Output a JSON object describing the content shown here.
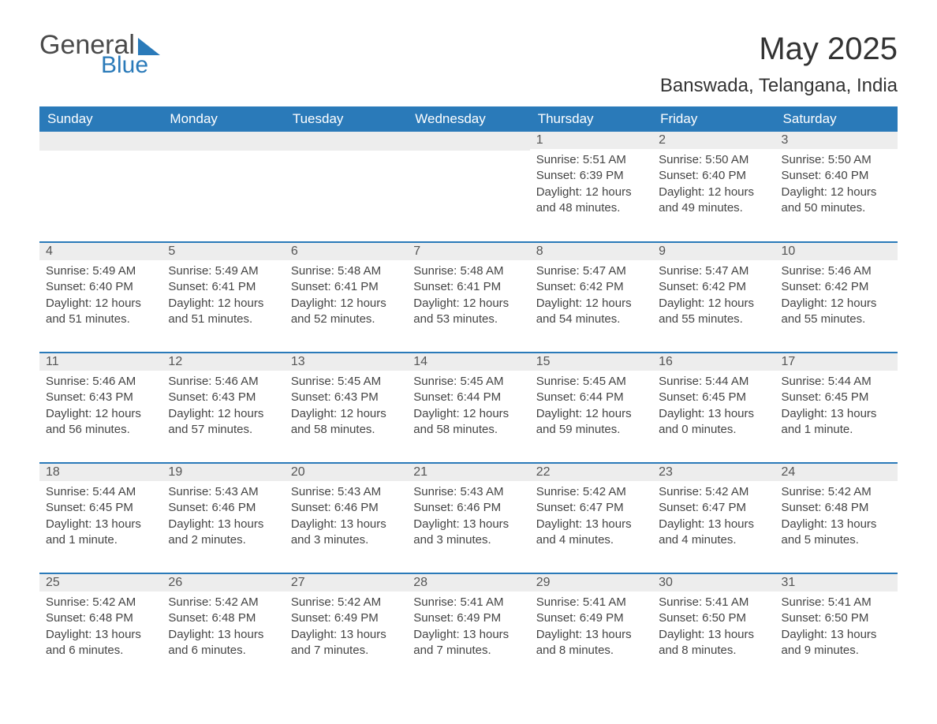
{
  "logo": {
    "text_general": "General",
    "text_blue": "Blue"
  },
  "title": {
    "month": "May 2025",
    "location": "Banswada, Telangana, India"
  },
  "colors": {
    "header_bg": "#2a7ab9",
    "header_text": "#ffffff",
    "daynum_bg": "#ededed",
    "border": "#2a7ab9",
    "body_text": "#444444",
    "page_bg": "#ffffff"
  },
  "day_headers": [
    "Sunday",
    "Monday",
    "Tuesday",
    "Wednesday",
    "Thursday",
    "Friday",
    "Saturday"
  ],
  "weeks": [
    [
      null,
      null,
      null,
      null,
      {
        "n": "1",
        "sunrise": "5:51 AM",
        "sunset": "6:39 PM",
        "daylight": "12 hours and 48 minutes."
      },
      {
        "n": "2",
        "sunrise": "5:50 AM",
        "sunset": "6:40 PM",
        "daylight": "12 hours and 49 minutes."
      },
      {
        "n": "3",
        "sunrise": "5:50 AM",
        "sunset": "6:40 PM",
        "daylight": "12 hours and 50 minutes."
      }
    ],
    [
      {
        "n": "4",
        "sunrise": "5:49 AM",
        "sunset": "6:40 PM",
        "daylight": "12 hours and 51 minutes."
      },
      {
        "n": "5",
        "sunrise": "5:49 AM",
        "sunset": "6:41 PM",
        "daylight": "12 hours and 51 minutes."
      },
      {
        "n": "6",
        "sunrise": "5:48 AM",
        "sunset": "6:41 PM",
        "daylight": "12 hours and 52 minutes."
      },
      {
        "n": "7",
        "sunrise": "5:48 AM",
        "sunset": "6:41 PM",
        "daylight": "12 hours and 53 minutes."
      },
      {
        "n": "8",
        "sunrise": "5:47 AM",
        "sunset": "6:42 PM",
        "daylight": "12 hours and 54 minutes."
      },
      {
        "n": "9",
        "sunrise": "5:47 AM",
        "sunset": "6:42 PM",
        "daylight": "12 hours and 55 minutes."
      },
      {
        "n": "10",
        "sunrise": "5:46 AM",
        "sunset": "6:42 PM",
        "daylight": "12 hours and 55 minutes."
      }
    ],
    [
      {
        "n": "11",
        "sunrise": "5:46 AM",
        "sunset": "6:43 PM",
        "daylight": "12 hours and 56 minutes."
      },
      {
        "n": "12",
        "sunrise": "5:46 AM",
        "sunset": "6:43 PM",
        "daylight": "12 hours and 57 minutes."
      },
      {
        "n": "13",
        "sunrise": "5:45 AM",
        "sunset": "6:43 PM",
        "daylight": "12 hours and 58 minutes."
      },
      {
        "n": "14",
        "sunrise": "5:45 AM",
        "sunset": "6:44 PM",
        "daylight": "12 hours and 58 minutes."
      },
      {
        "n": "15",
        "sunrise": "5:45 AM",
        "sunset": "6:44 PM",
        "daylight": "12 hours and 59 minutes."
      },
      {
        "n": "16",
        "sunrise": "5:44 AM",
        "sunset": "6:45 PM",
        "daylight": "13 hours and 0 minutes."
      },
      {
        "n": "17",
        "sunrise": "5:44 AM",
        "sunset": "6:45 PM",
        "daylight": "13 hours and 1 minute."
      }
    ],
    [
      {
        "n": "18",
        "sunrise": "5:44 AM",
        "sunset": "6:45 PM",
        "daylight": "13 hours and 1 minute."
      },
      {
        "n": "19",
        "sunrise": "5:43 AM",
        "sunset": "6:46 PM",
        "daylight": "13 hours and 2 minutes."
      },
      {
        "n": "20",
        "sunrise": "5:43 AM",
        "sunset": "6:46 PM",
        "daylight": "13 hours and 3 minutes."
      },
      {
        "n": "21",
        "sunrise": "5:43 AM",
        "sunset": "6:46 PM",
        "daylight": "13 hours and 3 minutes."
      },
      {
        "n": "22",
        "sunrise": "5:42 AM",
        "sunset": "6:47 PM",
        "daylight": "13 hours and 4 minutes."
      },
      {
        "n": "23",
        "sunrise": "5:42 AM",
        "sunset": "6:47 PM",
        "daylight": "13 hours and 4 minutes."
      },
      {
        "n": "24",
        "sunrise": "5:42 AM",
        "sunset": "6:48 PM",
        "daylight": "13 hours and 5 minutes."
      }
    ],
    [
      {
        "n": "25",
        "sunrise": "5:42 AM",
        "sunset": "6:48 PM",
        "daylight": "13 hours and 6 minutes."
      },
      {
        "n": "26",
        "sunrise": "5:42 AM",
        "sunset": "6:48 PM",
        "daylight": "13 hours and 6 minutes."
      },
      {
        "n": "27",
        "sunrise": "5:42 AM",
        "sunset": "6:49 PM",
        "daylight": "13 hours and 7 minutes."
      },
      {
        "n": "28",
        "sunrise": "5:41 AM",
        "sunset": "6:49 PM",
        "daylight": "13 hours and 7 minutes."
      },
      {
        "n": "29",
        "sunrise": "5:41 AM",
        "sunset": "6:49 PM",
        "daylight": "13 hours and 8 minutes."
      },
      {
        "n": "30",
        "sunrise": "5:41 AM",
        "sunset": "6:50 PM",
        "daylight": "13 hours and 8 minutes."
      },
      {
        "n": "31",
        "sunrise": "5:41 AM",
        "sunset": "6:50 PM",
        "daylight": "13 hours and 9 minutes."
      }
    ]
  ],
  "labels": {
    "sunrise": "Sunrise: ",
    "sunset": "Sunset: ",
    "daylight": "Daylight: "
  }
}
